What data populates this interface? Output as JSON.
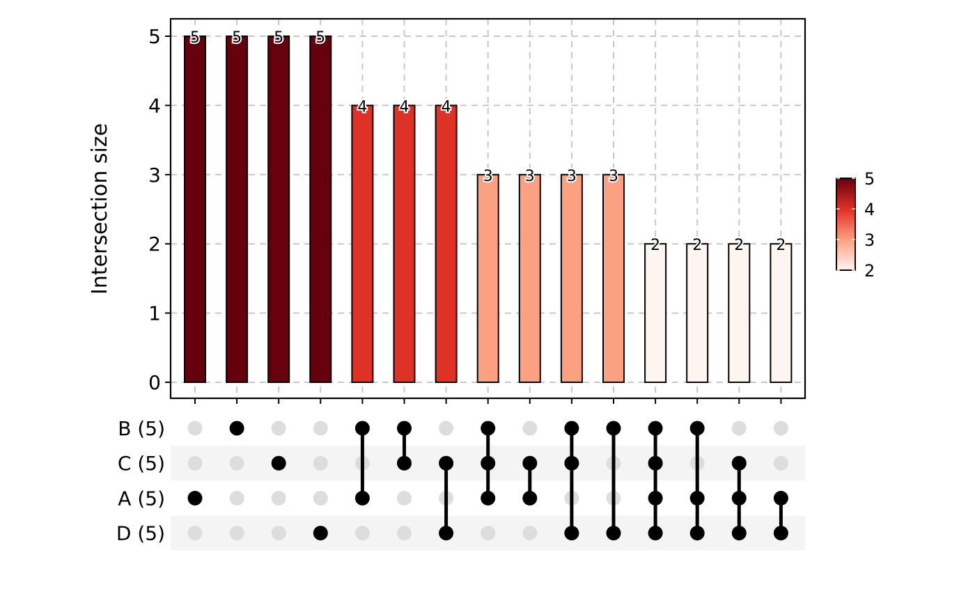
{
  "chart_data": {
    "type": "bar",
    "subtype": "upset",
    "ylabel": "Intersection size",
    "ylim": [
      0,
      5
    ],
    "yticks": [
      "0",
      "1",
      "2",
      "3",
      "4",
      "5"
    ],
    "grid": true,
    "sets": [
      {
        "name": "B",
        "size": 5,
        "label": "B (5)"
      },
      {
        "name": "C",
        "size": 5,
        "label": "C (5)"
      },
      {
        "name": "A",
        "size": 5,
        "label": "A (5)"
      },
      {
        "name": "D",
        "size": 5,
        "label": "D (5)"
      }
    ],
    "intersections": [
      {
        "sets": [
          "A"
        ],
        "value": 5
      },
      {
        "sets": [
          "B"
        ],
        "value": 5
      },
      {
        "sets": [
          "C"
        ],
        "value": 5
      },
      {
        "sets": [
          "D"
        ],
        "value": 5
      },
      {
        "sets": [
          "B",
          "A"
        ],
        "value": 4
      },
      {
        "sets": [
          "B",
          "C"
        ],
        "value": 4
      },
      {
        "sets": [
          "C",
          "D"
        ],
        "value": 4
      },
      {
        "sets": [
          "B",
          "C",
          "A"
        ],
        "value": 3
      },
      {
        "sets": [
          "C",
          "A"
        ],
        "value": 3
      },
      {
        "sets": [
          "B",
          "C",
          "D"
        ],
        "value": 3
      },
      {
        "sets": [
          "B",
          "D"
        ],
        "value": 3
      },
      {
        "sets": [
          "B",
          "C",
          "A",
          "D"
        ],
        "value": 2
      },
      {
        "sets": [
          "B",
          "A",
          "D"
        ],
        "value": 2
      },
      {
        "sets": [
          "C",
          "A",
          "D"
        ],
        "value": 2
      },
      {
        "sets": [
          "A",
          "D"
        ],
        "value": 2
      }
    ],
    "colorbar": {
      "range": [
        2,
        5
      ],
      "ticks": [
        "2",
        "3",
        "4",
        "5"
      ],
      "colors": {
        "2": "#fff5f0",
        "3": "#fca082",
        "4": "#e03127",
        "5": "#67000d"
      },
      "placement": "right"
    }
  }
}
